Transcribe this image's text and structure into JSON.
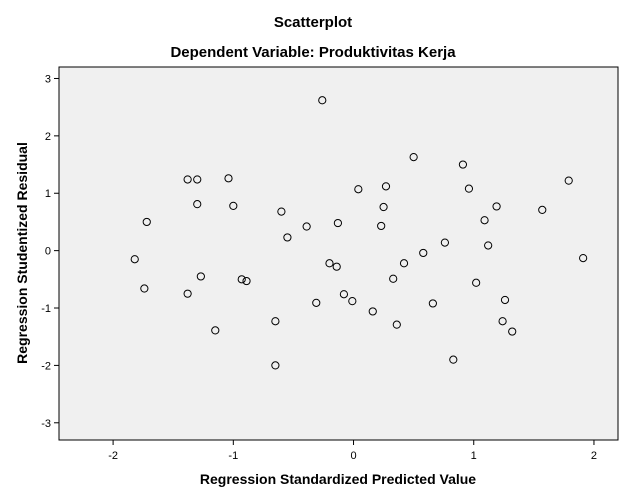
{
  "chart_data": {
    "type": "scatter",
    "title": "Scatterplot",
    "subtitle": "Dependent Variable: Produktivitas Kerja",
    "xlabel": "Regression Standardized Predicted Value",
    "ylabel": "Regression Studentized Residual",
    "xlim": [
      -2.45,
      2.2
    ],
    "ylim": [
      -3.3,
      3.2
    ],
    "xticks": [
      -2,
      -1,
      0,
      1,
      2
    ],
    "xtick_labels": [
      "-2",
      "-1",
      "0",
      "1",
      "2"
    ],
    "yticks": [
      -3,
      -2,
      -1,
      0,
      1,
      2,
      3
    ],
    "ytick_labels": [
      "-3",
      "-2",
      "-1",
      "0",
      "1",
      "2",
      "3"
    ],
    "grid": false,
    "plot_background": "#f0f0f0",
    "marker": "hollow-circle",
    "marker_color": "#000000",
    "points": [
      {
        "x": -0.26,
        "y": 2.62
      },
      {
        "x": 0.5,
        "y": 1.63
      },
      {
        "x": 0.91,
        "y": 1.5
      },
      {
        "x": -1.04,
        "y": 1.26
      },
      {
        "x": -1.38,
        "y": 1.24
      },
      {
        "x": -1.3,
        "y": 1.24
      },
      {
        "x": 1.79,
        "y": 1.22
      },
      {
        "x": 0.27,
        "y": 1.12
      },
      {
        "x": 0.96,
        "y": 1.08
      },
      {
        "x": 0.04,
        "y": 1.07
      },
      {
        "x": -1.3,
        "y": 0.81
      },
      {
        "x": -1.0,
        "y": 0.78
      },
      {
        "x": 1.19,
        "y": 0.77
      },
      {
        "x": 0.25,
        "y": 0.76
      },
      {
        "x": 1.57,
        "y": 0.71
      },
      {
        "x": -0.6,
        "y": 0.68
      },
      {
        "x": 1.09,
        "y": 0.53
      },
      {
        "x": -1.72,
        "y": 0.5
      },
      {
        "x": -0.13,
        "y": 0.48
      },
      {
        "x": 0.23,
        "y": 0.43
      },
      {
        "x": -0.39,
        "y": 0.42
      },
      {
        "x": -0.55,
        "y": 0.23
      },
      {
        "x": 0.76,
        "y": 0.14
      },
      {
        "x": 1.12,
        "y": 0.09
      },
      {
        "x": 0.58,
        "y": -0.04
      },
      {
        "x": -1.82,
        "y": -0.15
      },
      {
        "x": 1.91,
        "y": -0.13
      },
      {
        "x": -0.2,
        "y": -0.22
      },
      {
        "x": 0.42,
        "y": -0.22
      },
      {
        "x": -0.14,
        "y": -0.28
      },
      {
        "x": -1.27,
        "y": -0.45
      },
      {
        "x": 0.33,
        "y": -0.49
      },
      {
        "x": -0.93,
        "y": -0.5
      },
      {
        "x": -0.89,
        "y": -0.53
      },
      {
        "x": 1.02,
        "y": -0.56
      },
      {
        "x": -1.74,
        "y": -0.66
      },
      {
        "x": -1.38,
        "y": -0.75
      },
      {
        "x": -0.08,
        "y": -0.76
      },
      {
        "x": 1.26,
        "y": -0.86
      },
      {
        "x": -0.01,
        "y": -0.88
      },
      {
        "x": -0.31,
        "y": -0.91
      },
      {
        "x": 0.66,
        "y": -0.92
      },
      {
        "x": 0.16,
        "y": -1.06
      },
      {
        "x": -0.65,
        "y": -1.23
      },
      {
        "x": 1.24,
        "y": -1.23
      },
      {
        "x": 0.36,
        "y": -1.29
      },
      {
        "x": -1.15,
        "y": -1.39
      },
      {
        "x": 1.32,
        "y": -1.41
      },
      {
        "x": 0.83,
        "y": -1.9
      },
      {
        "x": -0.65,
        "y": -2.0
      }
    ]
  }
}
